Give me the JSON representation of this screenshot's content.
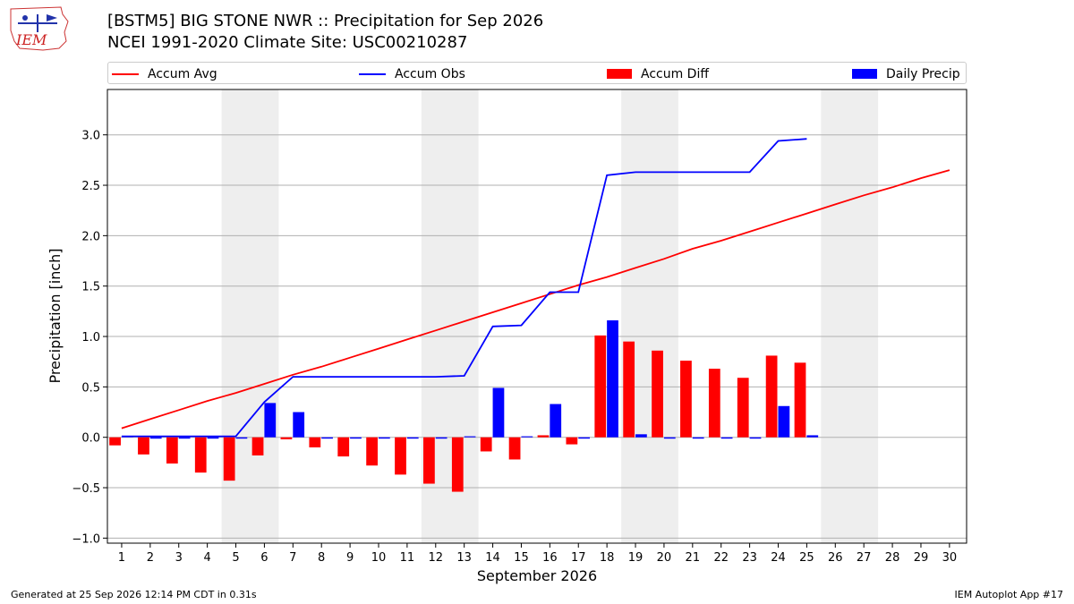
{
  "header": {
    "title_line1": "[BSTM5] BIG STONE NWR :: Precipitation for Sep 2026",
    "title_line2": "NCEI 1991-2020 Climate Site: USC00210287",
    "logo_text": "IEM"
  },
  "footer": {
    "left": "Generated at 25 Sep 2026 12:14 PM CDT in 0.31s",
    "right": "IEM Autoplot App #17"
  },
  "chart_data": {
    "type": "bar",
    "xlabel": "September 2026",
    "ylabel": "Precipitation [inch]",
    "ylim": [
      -1.05,
      3.45
    ],
    "yticks": [
      -1.0,
      -0.5,
      0.0,
      0.5,
      1.0,
      1.5,
      2.0,
      2.5,
      3.0
    ],
    "ytick_labels": [
      "−1.0",
      "−0.5",
      "0.0",
      "0.5",
      "1.0",
      "1.5",
      "2.0",
      "2.5",
      "3.0"
    ],
    "xlim": [
      0.5,
      30.6
    ],
    "grid": "horizontal",
    "legend_position": "top",
    "days": [
      1,
      2,
      3,
      4,
      5,
      6,
      7,
      8,
      9,
      10,
      11,
      12,
      13,
      14,
      15,
      16,
      17,
      18,
      19,
      20,
      21,
      22,
      23,
      24,
      25,
      26,
      27,
      28,
      29,
      30
    ],
    "weekend_shading": [
      [
        5,
        6
      ],
      [
        12,
        13
      ],
      [
        19,
        20
      ],
      [
        26,
        27
      ]
    ],
    "series": [
      {
        "name": "Accum Avg",
        "kind": "line",
        "color": "#ff0000",
        "x": [
          1,
          2,
          3,
          4,
          5,
          6,
          7,
          8,
          9,
          10,
          11,
          12,
          13,
          14,
          15,
          16,
          17,
          18,
          19,
          20,
          21,
          22,
          23,
          24,
          25,
          26,
          27,
          28,
          29,
          30
        ],
        "values": [
          0.09,
          0.18,
          0.27,
          0.36,
          0.44,
          0.53,
          0.62,
          0.7,
          0.79,
          0.88,
          0.97,
          1.06,
          1.15,
          1.24,
          1.33,
          1.42,
          1.51,
          1.59,
          1.68,
          1.77,
          1.87,
          1.95,
          2.04,
          2.13,
          2.22,
          2.31,
          2.4,
          2.48,
          2.57,
          2.65
        ]
      },
      {
        "name": "Accum Obs",
        "kind": "line",
        "color": "#0000ff",
        "x": [
          1,
          2,
          3,
          4,
          5,
          6,
          7,
          8,
          9,
          10,
          11,
          12,
          13,
          14,
          15,
          16,
          17,
          18,
          19,
          20,
          21,
          22,
          23,
          24,
          25
        ],
        "values": [
          0.01,
          0.01,
          0.01,
          0.01,
          0.01,
          0.35,
          0.6,
          0.6,
          0.6,
          0.6,
          0.6,
          0.6,
          0.61,
          1.1,
          1.11,
          1.44,
          1.44,
          2.6,
          2.63,
          2.63,
          2.63,
          2.63,
          2.63,
          2.94,
          2.96
        ]
      },
      {
        "name": "Accum Diff",
        "kind": "bar",
        "color": "#ff0000",
        "x": [
          1,
          2,
          3,
          4,
          5,
          6,
          7,
          8,
          9,
          10,
          11,
          12,
          13,
          14,
          15,
          16,
          17,
          18,
          19,
          20,
          21,
          22,
          23,
          24,
          25
        ],
        "values": [
          -0.08,
          -0.17,
          -0.26,
          -0.35,
          -0.43,
          -0.18,
          -0.02,
          -0.1,
          -0.19,
          -0.28,
          -0.37,
          -0.46,
          -0.54,
          -0.14,
          -0.22,
          0.02,
          -0.07,
          1.01,
          0.95,
          0.86,
          0.76,
          0.68,
          0.59,
          0.81,
          0.74
        ]
      },
      {
        "name": "Daily Precip",
        "kind": "bar",
        "color": "#0000ff",
        "x": [
          1,
          2,
          3,
          4,
          5,
          6,
          7,
          8,
          9,
          10,
          11,
          12,
          13,
          14,
          15,
          16,
          17,
          18,
          19,
          20,
          21,
          22,
          23,
          24,
          25
        ],
        "values": [
          0.01,
          0.0,
          0.0,
          0.0,
          0.0,
          0.34,
          0.25,
          0.0,
          0.0,
          0.0,
          0.0,
          0.0,
          0.01,
          0.49,
          0.01,
          0.33,
          0.0,
          1.16,
          0.03,
          0.0,
          0.0,
          0.0,
          0.0,
          0.31,
          0.02
        ]
      }
    ]
  }
}
